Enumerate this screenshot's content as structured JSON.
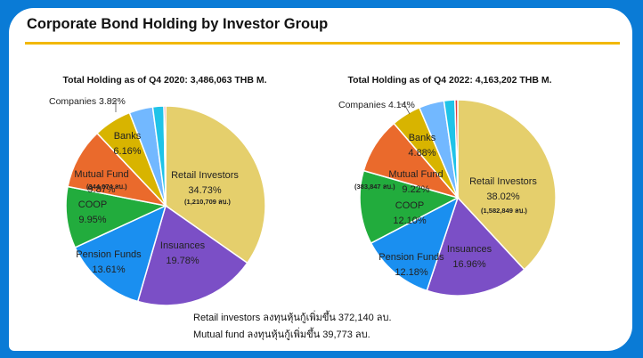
{
  "page_title": "Corporate Bond Holding by Investor Group",
  "colors": {
    "frame": "#0a7bd6",
    "rule": "#f2b800",
    "Retail Investors": "#e5cf6c",
    "Insuances": "#7b4fc6",
    "Pension Funds": "#1a8ff0",
    "COOP": "#22ac3d",
    "Mutual Fund": "#ea6a2c",
    "Banks": "#d8b400",
    "Companies": "#72b8ff",
    "Other": "#1fc3e8",
    "Other2": "#e03c3c"
  },
  "chart_data": [
    {
      "type": "pie",
      "title": "Total Holding as of Q4 2020: 3,486,063 THB M.",
      "slices": [
        {
          "label": "Retail Investors",
          "value": 34.73,
          "display": "34.73%",
          "note": "(1,210,709 ลบ.)"
        },
        {
          "label": "Insuances",
          "value": 19.78,
          "display": "19.78%"
        },
        {
          "label": "Pension Funds",
          "value": 13.61,
          "display": "13.61%"
        },
        {
          "label": "COOP",
          "value": 9.95,
          "display": "9.95%"
        },
        {
          "label": "Mutual Fund",
          "value": 9.87,
          "display": "9.87%",
          "note": "(344,074 ลบ.)"
        },
        {
          "label": "Banks",
          "value": 6.16,
          "display": "6.16%"
        },
        {
          "label": "Companies",
          "value": 3.82,
          "display": "Companies 3.82%"
        },
        {
          "label": "",
          "value": 1.8
        },
        {
          "label": "",
          "value": 0.28
        }
      ]
    },
    {
      "type": "pie",
      "title": "Total Holding as of Q4 2022: 4,163,202 THB M.",
      "slices": [
        {
          "label": "Retail Investors",
          "value": 38.02,
          "display": "38.02%",
          "note": "(1,582,849 ลบ.)"
        },
        {
          "label": "Insuances",
          "value": 16.96,
          "display": "16.96%"
        },
        {
          "label": "Pension Funds",
          "value": 12.18,
          "display": "12.18%"
        },
        {
          "label": "COOP",
          "value": 12.1,
          "display": "12.10%"
        },
        {
          "label": "Mutual Fund",
          "value": 9.22,
          "display": "9.22%",
          "note": "(383,847 ลบ.)"
        },
        {
          "label": "Banks",
          "value": 4.88,
          "display": "4.88%"
        },
        {
          "label": "Companies",
          "value": 4.14,
          "display": "Companies 4.14%"
        },
        {
          "label": "",
          "value": 1.8
        },
        {
          "label": "",
          "value": 0.46
        }
      ]
    }
  ],
  "notes": [
    "Retail investors ลงทุนหุ้นกู้เพิ่มขึ้น 372,140 ลบ.",
    "Mutual fund ลงทุนหุ้นกู้เพิ่มขึ้น 39,773 ลบ."
  ]
}
